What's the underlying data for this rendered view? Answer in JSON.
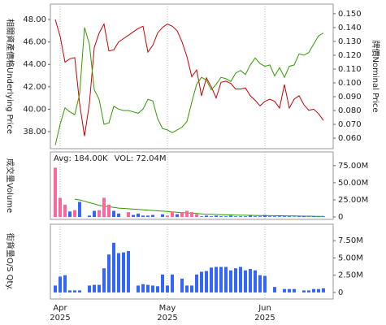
{
  "chart_data": [
    {
      "type": "line",
      "xlim": [
        -1,
        57
      ],
      "y_label": "相關資產價格Underlying Price",
      "y2_label": "牌價Nominal Price",
      "ylim": [
        36.48,
        49.38
      ],
      "yticks": [
        {
          "value": 38,
          "label": "38.00"
        },
        {
          "value": 40,
          "label": "40.00"
        },
        {
          "value": 42,
          "label": "42.00"
        },
        {
          "value": 44,
          "label": "44.00"
        },
        {
          "value": 46,
          "label": "46.00"
        },
        {
          "value": 48,
          "label": "48.00"
        }
      ],
      "y2lim": [
        0.0524,
        0.157
      ],
      "y2ticks": [
        {
          "value": 0.06,
          "label": "0.060"
        },
        {
          "value": 0.07,
          "label": "0.070"
        },
        {
          "value": 0.08,
          "label": "0.080"
        },
        {
          "value": 0.09,
          "label": "0.090"
        },
        {
          "value": 0.1,
          "label": "0.100"
        },
        {
          "value": 0.11,
          "label": "0.110"
        },
        {
          "value": 0.12,
          "label": "0.120"
        },
        {
          "value": 0.13,
          "label": "0.130"
        },
        {
          "value": 0.14,
          "label": "0.140"
        },
        {
          "value": 0.15,
          "label": "0.150"
        }
      ],
      "y_label_color": "#cc0000",
      "y2_label_color": "#339900",
      "series": [
        {
          "color": "#cc0000",
          "axis": "y",
          "values": [
            48.0,
            46.5,
            44.2,
            44.5,
            44.6,
            40.5,
            37.6,
            40.5,
            45.5,
            46.8,
            47.6,
            45.2,
            45.3,
            46.0,
            46.3,
            46.6,
            46.9,
            47.2,
            47.4,
            45.1,
            45.7,
            46.8,
            47.3,
            47.6,
            47.4,
            47.0,
            46.0,
            44.7,
            42.9,
            43.5,
            41.2,
            42.8,
            42.0,
            41.0,
            42.4,
            42.5,
            42.3,
            41.8,
            41.8,
            41.9,
            41.2,
            40.8,
            40.3,
            40.7,
            40.9,
            40.7,
            40.1,
            42.2,
            40.1,
            40.9,
            41.2,
            40.4,
            39.9,
            40.0,
            39.6,
            39.0
          ]
        },
        {
          "color": "#339900",
          "axis": "y2",
          "values": [
            0.055,
            0.07,
            0.082,
            0.079,
            0.077,
            0.092,
            0.14,
            0.128,
            0.095,
            0.088,
            0.07,
            0.071,
            0.083,
            0.081,
            0.08,
            0.08,
            0.079,
            0.078,
            0.081,
            0.088,
            0.087,
            0.074,
            0.067,
            0.066,
            0.064,
            0.066,
            0.068,
            0.072,
            0.086,
            0.099,
            0.104,
            0.102,
            0.095,
            0.099,
            0.104,
            0.103,
            0.101,
            0.107,
            0.109,
            0.106,
            0.113,
            0.118,
            0.114,
            0.112,
            0.113,
            0.105,
            0.111,
            0.104,
            0.112,
            0.113,
            0.121,
            0.12,
            0.122,
            0.128,
            0.134,
            0.136
          ]
        }
      ]
    },
    {
      "type": "bar",
      "xlim": [
        -1,
        57
      ],
      "y_label": "成交量Volume",
      "ylim": [
        -3500000,
        95000000
      ],
      "yticks": [
        0,
        {
          "value": 25000000,
          "label": "25.00M"
        },
        {
          "value": 50000000,
          "label": "50.00M"
        },
        {
          "value": 75000000,
          "label": "75.00M"
        }
      ],
      "series": [
        {
          "name": "Avg: 184.00K",
          "color": "#339900",
          "kind": "line",
          "values": [
            null,
            null,
            null,
            null,
            26000000,
            25000000,
            23000000,
            21000000,
            19000000,
            17000000,
            16000000,
            15000000,
            14000000,
            13000000,
            12500000,
            12000000,
            11500000,
            11000000,
            10500000,
            10000000,
            9500000,
            9000000,
            8500000,
            8000000,
            7500000,
            7000000,
            6500000,
            6000000,
            5500000,
            5000000,
            4500000,
            4000000,
            3800000,
            3600000,
            3400000,
            3200000,
            3000000,
            2800000,
            2600000,
            2500000,
            2400000,
            2300000,
            2200000,
            2100000,
            2000000,
            1900000,
            1800000,
            1700000,
            1600000,
            1500000,
            1400000,
            1300000,
            1200000,
            1100000,
            1000000,
            900000
          ]
        },
        {
          "name": "VOL: 72.04M",
          "color": "#ff6699",
          "kind": "bar",
          "values": [
            72040000,
            28000000,
            18000000,
            8000000,
            10000000,
            22000000,
            0,
            2000000,
            9000000,
            10000000,
            28000000,
            18000000,
            9000000,
            5000000,
            0,
            7000000,
            3000000,
            5000000,
            2000000,
            2000000,
            3000000,
            0,
            4000000,
            2000000,
            8000000,
            4000000,
            7000000,
            9000000,
            7000000,
            4000000,
            1000000,
            2000000,
            1000000,
            2000000,
            1000000,
            1000000,
            2000000,
            1000000,
            1000000,
            1000000,
            2000000,
            1000000,
            1000000,
            3000000,
            1000000,
            1000000,
            1000000,
            1000000,
            1000000,
            500000,
            1000000,
            1000000,
            500000,
            1000000,
            500000,
            1000000
          ],
          "bar_colors": [
            "#ff6699",
            "#ff6699",
            "#ff6699",
            "#3366ff",
            "#ff6699",
            "#3366ff",
            "#3366ff",
            "#3366ff",
            "#3366ff",
            "#ff6699",
            "#ff6699",
            "#ff6699",
            "#3366ff",
            "#3366ff",
            "#3366ff",
            "#ff6699",
            "#3366ff",
            "#3366ff",
            "#3366ff",
            "#3366ff",
            "#3366ff",
            "#3366ff",
            "#3366ff",
            "#ff6699",
            "#ff6699",
            "#3366ff",
            "#ff6699",
            "#ff6699",
            "#ff6699",
            "#ff6699",
            "#3366ff",
            "#3366ff",
            "#3366ff",
            "#3366ff",
            "#3366ff",
            "#3366ff",
            "#3366ff",
            "#3366ff",
            "#3366ff",
            "#3366ff",
            "#3366ff",
            "#3366ff",
            "#3366ff",
            "#3366ff",
            "#3366ff",
            "#3366ff",
            "#3366ff",
            "#3366ff",
            "#3366ff",
            "#3366ff",
            "#3366ff",
            "#3366ff",
            "#3366ff",
            "#3366ff",
            "#3366ff",
            "#3366ff"
          ]
        }
      ]
    },
    {
      "type": "bar",
      "xlim": [
        -1,
        57
      ],
      "y_label": "街貨量O/S Qty.",
      "ylim": [
        -950000,
        9880000
      ],
      "yticks": [
        0,
        {
          "value": 2500000,
          "label": "2.50M"
        },
        {
          "value": 5000000,
          "label": "5.00M"
        },
        {
          "value": 7500000,
          "label": "7.50M"
        }
      ],
      "xticks": [
        {
          "value": 1,
          "label": [
            "Apr",
            "2025"
          ]
        },
        {
          "value": 23,
          "label": [
            "May",
            "2025"
          ]
        },
        {
          "value": 43,
          "label": [
            "Jun",
            "2025"
          ]
        }
      ],
      "series": [
        {
          "color": "#3366ff",
          "kind": "bar",
          "values": [
            1000000,
            2300000,
            2500000,
            300000,
            300000,
            300000,
            0,
            1000000,
            1100000,
            1100000,
            3500000,
            5500000,
            7200000,
            5700000,
            5800000,
            6000000,
            0,
            1000000,
            1200000,
            1100000,
            1000000,
            900000,
            2600000,
            1000000,
            2600000,
            0,
            2000000,
            1000000,
            1000000,
            2600000,
            3000000,
            3100000,
            3600000,
            3700000,
            3700000,
            3700000,
            3200000,
            3500000,
            3700000,
            3200000,
            3400000,
            3200000,
            2500000,
            2400000,
            0,
            800000,
            0,
            500000,
            500000,
            500000,
            0,
            300000,
            300000,
            500000,
            500000,
            600000
          ]
        }
      ]
    }
  ]
}
